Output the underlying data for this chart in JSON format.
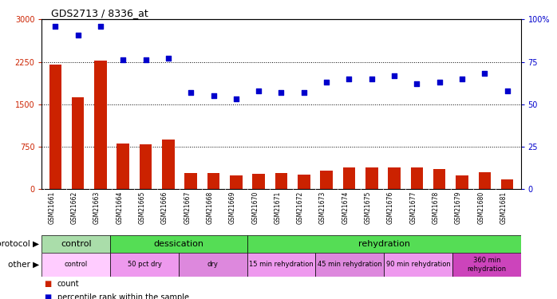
{
  "title": "GDS2713 / 8336_at",
  "samples": [
    "GSM21661",
    "GSM21662",
    "GSM21663",
    "GSM21664",
    "GSM21665",
    "GSM21666",
    "GSM21667",
    "GSM21668",
    "GSM21669",
    "GSM21670",
    "GSM21671",
    "GSM21672",
    "GSM21673",
    "GSM21674",
    "GSM21675",
    "GSM21676",
    "GSM21677",
    "GSM21678",
    "GSM21679",
    "GSM21680",
    "GSM21681"
  ],
  "counts": [
    2200,
    1620,
    2270,
    800,
    790,
    870,
    280,
    285,
    245,
    270,
    285,
    250,
    320,
    380,
    375,
    375,
    375,
    355,
    235,
    300,
    175
  ],
  "percentiles": [
    96,
    91,
    96,
    76,
    76,
    77,
    57,
    55,
    53,
    58,
    57,
    57,
    63,
    65,
    65,
    67,
    62,
    63,
    65,
    68,
    58
  ],
  "ylim_left": [
    0,
    3000
  ],
  "ylim_right": [
    0,
    100
  ],
  "yticks_left": [
    0,
    750,
    1500,
    2250,
    3000
  ],
  "yticks_right": [
    0,
    25,
    50,
    75,
    100
  ],
  "bar_color": "#cc2200",
  "dot_color": "#0000cc",
  "background_color": "#ffffff",
  "protocol_groups": [
    {
      "label": "control",
      "start": 0,
      "end": 3,
      "color": "#aaddaa"
    },
    {
      "label": "dessication",
      "start": 3,
      "end": 9,
      "color": "#55dd55"
    },
    {
      "label": "rehydration",
      "start": 9,
      "end": 21,
      "color": "#55dd55"
    }
  ],
  "other_groups": [
    {
      "label": "control",
      "start": 0,
      "end": 3,
      "color": "#ffccff"
    },
    {
      "label": "50 pct dry",
      "start": 3,
      "end": 6,
      "color": "#ee99ee"
    },
    {
      "label": "dry",
      "start": 6,
      "end": 9,
      "color": "#dd88dd"
    },
    {
      "label": "15 min rehydration",
      "start": 9,
      "end": 12,
      "color": "#ee99ee"
    },
    {
      "label": "45 min rehydration",
      "start": 12,
      "end": 15,
      "color": "#dd88dd"
    },
    {
      "label": "90 min rehydration",
      "start": 15,
      "end": 18,
      "color": "#ee99ee"
    },
    {
      "label": "360 min\nrehydration",
      "start": 18,
      "end": 21,
      "color": "#cc44bb"
    }
  ],
  "protocol_row_label": "protocol",
  "other_row_label": "other",
  "legend_count_label": "count",
  "legend_pct_label": "percentile rank within the sample",
  "right_axis_color": "#0000cc",
  "xtick_bg": "#dddddd"
}
